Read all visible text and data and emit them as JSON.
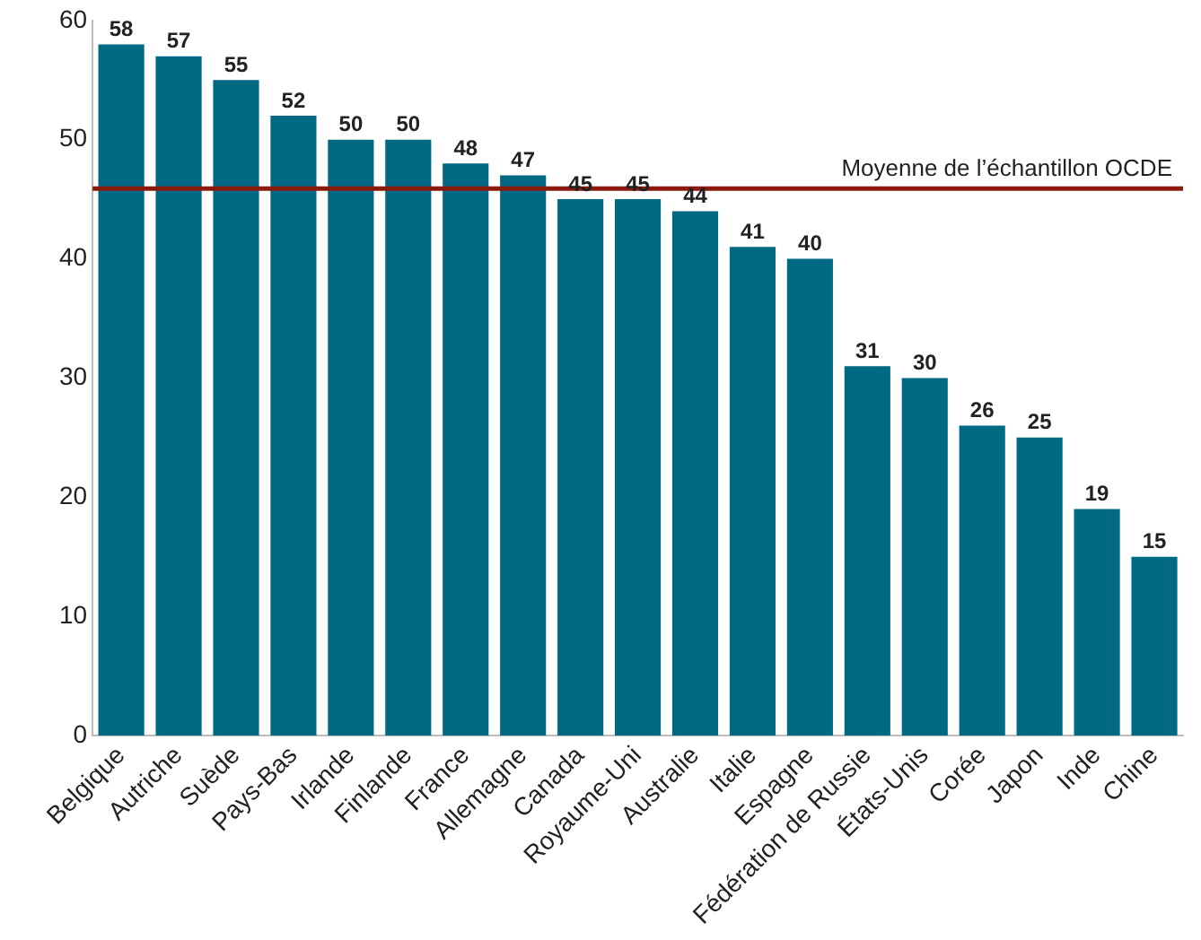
{
  "chart_data": {
    "type": "bar",
    "categories": [
      "Belgique",
      "Autriche",
      "Suède",
      "Pays-Bas",
      "Irlande",
      "Finlande",
      "France",
      "Allemagne",
      "Canada",
      "Royaume-Uni",
      "Australie",
      "Italie",
      "Espagne",
      "Fédération de Russie",
      "États-Unis",
      "Corée",
      "Japon",
      "Inde",
      "Chine"
    ],
    "values": [
      58,
      57,
      55,
      52,
      50,
      50,
      48,
      47,
      45,
      45,
      44,
      41,
      40,
      31,
      30,
      26,
      25,
      19,
      15
    ],
    "color": "#006a85",
    "ylim": [
      0,
      60
    ],
    "yticks": [
      0,
      10,
      20,
      30,
      40,
      50,
      60
    ],
    "grid": false,
    "legend": false,
    "data_labels": true,
    "ref_lines": [
      {
        "axis": "y",
        "value": 45.9,
        "label": "Moyenne de l’échantillon OCDE",
        "color": "#8b1a0a"
      }
    ]
  }
}
